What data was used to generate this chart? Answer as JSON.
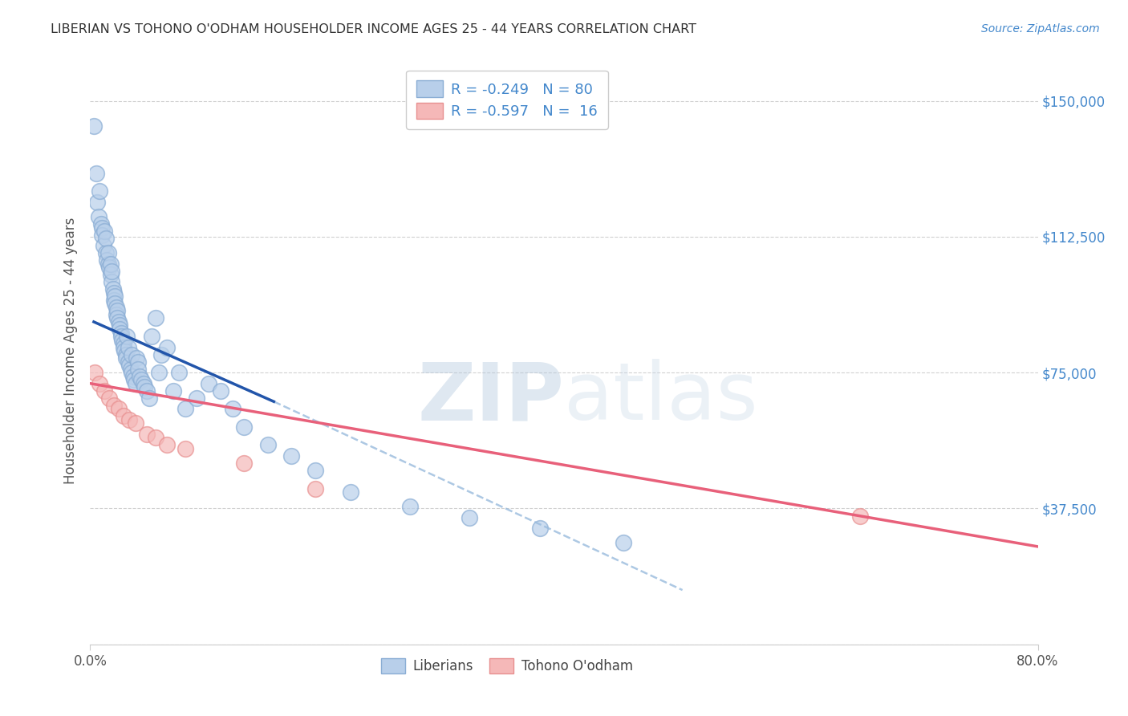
{
  "title": "LIBERIAN VS TOHONO O'ODHAM HOUSEHOLDER INCOME AGES 25 - 44 YEARS CORRELATION CHART",
  "source_text": "Source: ZipAtlas.com",
  "ylabel": "Householder Income Ages 25 - 44 years",
  "watermark_zip": "ZIP",
  "watermark_atlas": "atlas",
  "xlim": [
    0.0,
    0.8
  ],
  "ylim": [
    0,
    162000
  ],
  "yticks": [
    0,
    37500,
    75000,
    112500,
    150000
  ],
  "ytick_labels": [
    "",
    "$37,500",
    "$75,000",
    "$112,500",
    "$150,000"
  ],
  "liberian_R": -0.249,
  "liberian_N": 80,
  "tohono_R": -0.597,
  "tohono_N": 16,
  "blue_dot_face": "#B8CFEA",
  "blue_dot_edge": "#8AADD4",
  "pink_dot_face": "#F5B8B8",
  "pink_dot_edge": "#E89090",
  "blue_line_color": "#2255AA",
  "pink_line_color": "#E8607A",
  "dashed_line_color": "#99BBDD",
  "background_color": "#FFFFFF",
  "grid_color": "#CCCCCC",
  "title_color": "#333333",
  "right_tick_color": "#4488CC",
  "lib_x": [
    0.003,
    0.005,
    0.006,
    0.007,
    0.008,
    0.009,
    0.01,
    0.01,
    0.011,
    0.012,
    0.013,
    0.013,
    0.014,
    0.015,
    0.015,
    0.016,
    0.017,
    0.017,
    0.018,
    0.018,
    0.019,
    0.02,
    0.02,
    0.021,
    0.021,
    0.022,
    0.022,
    0.023,
    0.023,
    0.024,
    0.025,
    0.025,
    0.026,
    0.026,
    0.027,
    0.028,
    0.028,
    0.029,
    0.03,
    0.03,
    0.031,
    0.032,
    0.032,
    0.033,
    0.034,
    0.035,
    0.035,
    0.036,
    0.037,
    0.038,
    0.039,
    0.04,
    0.04,
    0.042,
    0.043,
    0.045,
    0.046,
    0.048,
    0.05,
    0.052,
    0.055,
    0.058,
    0.06,
    0.065,
    0.07,
    0.075,
    0.08,
    0.09,
    0.1,
    0.11,
    0.12,
    0.13,
    0.15,
    0.17,
    0.19,
    0.22,
    0.27,
    0.32,
    0.38,
    0.45
  ],
  "lib_y": [
    143000,
    130000,
    122000,
    118000,
    125000,
    116000,
    115000,
    113000,
    110000,
    114000,
    108000,
    112000,
    106000,
    105000,
    108000,
    104000,
    102000,
    105000,
    100000,
    103000,
    98000,
    97000,
    95000,
    96000,
    94000,
    93000,
    91000,
    92000,
    90000,
    89000,
    88000,
    87000,
    86000,
    85000,
    84000,
    83000,
    82000,
    81000,
    80000,
    79000,
    85000,
    78000,
    82000,
    77000,
    76000,
    75000,
    80000,
    74000,
    73000,
    72000,
    79000,
    78000,
    76000,
    74000,
    73000,
    72000,
    71000,
    70000,
    68000,
    85000,
    90000,
    75000,
    80000,
    82000,
    70000,
    75000,
    65000,
    68000,
    72000,
    70000,
    65000,
    60000,
    55000,
    52000,
    48000,
    42000,
    38000,
    35000,
    32000,
    28000
  ],
  "toh_x": [
    0.004,
    0.008,
    0.012,
    0.016,
    0.02,
    0.024,
    0.028,
    0.033,
    0.038,
    0.048,
    0.055,
    0.065,
    0.08,
    0.13,
    0.19,
    0.65
  ],
  "toh_y": [
    75000,
    72000,
    70000,
    68000,
    66000,
    65000,
    63000,
    62000,
    61000,
    58000,
    57000,
    55000,
    54000,
    50000,
    43000,
    35500
  ],
  "blue_line_x": [
    0.003,
    0.155
  ],
  "blue_line_y": [
    89000,
    67000
  ],
  "dashed_line_x": [
    0.155,
    0.5
  ],
  "dashed_line_y": [
    67000,
    15000
  ],
  "pink_line_x": [
    0.0,
    0.8
  ],
  "pink_line_y": [
    72000,
    27000
  ]
}
